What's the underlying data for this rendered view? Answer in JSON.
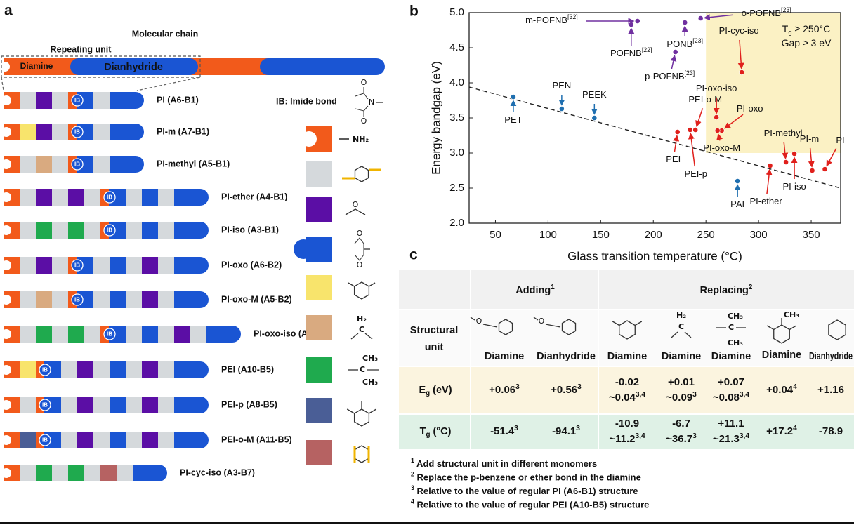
{
  "panel_a": {
    "letter": "a",
    "molecular_chain": "Molecular chain",
    "repeating_unit": "Repeating unit",
    "diamine": "Diamine",
    "dianhydride": "Dianhydride",
    "ib_legend": "IB: Imide bond",
    "ib_mark": "IB",
    "imide_atoms": [
      "O",
      "N",
      "O"
    ],
    "amine": "NH₂",
    "ether": "O",
    "anhydride_atoms": [
      "O",
      "O"
    ],
    "methylene": [
      "H₂",
      "C"
    ],
    "isopropylidene": [
      "CH₃",
      "C",
      "CH₃"
    ],
    "polymers": [
      "PI (A6-B1)",
      "PI-m (A7-B1)",
      "PI-methyl (A5-B1)",
      "PI-ether (A4-B1)",
      "PI-iso (A3-B1)",
      "PI-oxo (A6-B2)",
      "PI-oxo-M (A5-B2)",
      "PI-oxo-iso (A3-B2)",
      "PEI (A10-B5)",
      "PEI-p (A8-B5)",
      "PEI-o-M (A11-B5)",
      "PI-cyc-iso (A3-B7)"
    ]
  },
  "chart_data": {
    "type": "scatter",
    "letter": "b",
    "x_label": "Glass transition temperature (°C)",
    "y_label": "Energy bandgap (eV)",
    "xlim": [
      25,
      378
    ],
    "ylim": [
      2,
      5
    ],
    "xticks": [
      50,
      100,
      150,
      200,
      250,
      300,
      350
    ],
    "yticks": [
      {
        "value": 2,
        "label": "2.0"
      },
      {
        "value": 2.5,
        "label": "2.5"
      },
      {
        "value": 3,
        "label": "3.0"
      },
      {
        "value": 3.5,
        "label": "3.5"
      },
      {
        "value": 4,
        "label": "4.0"
      },
      {
        "value": 4.5,
        "label": "4.5"
      },
      {
        "value": 5,
        "label": "5.0"
      }
    ],
    "highlight": {
      "xlim": [
        250,
        378
      ],
      "ylim": [
        3,
        5
      ],
      "color": "#fbf1c4",
      "label_lines": [
        [
          {
            "t": "T"
          },
          {
            "t": "g",
            "s": "sub"
          },
          {
            "t": " ≥ 250°C"
          }
        ],
        [
          {
            "t": "Gap ≥ 3 eV"
          }
        ]
      ]
    },
    "trend_line": {
      "x": [
        25,
        378
      ],
      "y": [
        3.94,
        2.5
      ]
    },
    "series": [
      {
        "color": "#1f6fb0",
        "x": [
          67,
          113,
          144,
          280
        ],
        "values": [
          3.8,
          3.63,
          3.5,
          2.6
        ],
        "labels": [
          "PET",
          "PEN",
          "PEEK",
          "PAI"
        ]
      },
      {
        "color": "#e0201c",
        "x": [
          223,
          235,
          240,
          260,
          265,
          261,
          284,
          311,
          326,
          334,
          351,
          363
        ],
        "values": [
          3.3,
          3.33,
          3.33,
          3.51,
          3.32,
          3.32,
          4.15,
          2.82,
          2.87,
          2.99,
          2.75,
          2.77
        ],
        "labels": [
          "PEI",
          "PEI-p",
          "PEI-o-M",
          "PI-oxo-iso",
          "PI-oxo",
          "PI-oxo-M",
          "PI-cyc-iso",
          "PI-ether",
          "PI-methyl",
          "PI-iso",
          "PI-m",
          "PI"
        ]
      },
      {
        "color": "#7030a0",
        "x": [
          185,
          179,
          230,
          221,
          245
        ],
        "values": [
          4.88,
          4.83,
          4.86,
          4.44,
          4.92
        ],
        "labels": [
          "m-POFNB",
          "POFNB",
          "PONB",
          "p-POFNB",
          "o-POFNB"
        ],
        "refs": [
          "[32]",
          "[22]",
          "[23]",
          "[23]",
          "[23]"
        ]
      }
    ]
  },
  "table": {
    "letter": "c",
    "groups": [
      [
        {
          "t": "Adding"
        },
        {
          "t": "1",
          "s": "sup"
        }
      ],
      [
        {
          "t": "Replacing"
        },
        {
          "t": "2",
          "s": "sup"
        }
      ]
    ],
    "row_header": [
      "Structural",
      "unit"
    ],
    "columns": [
      "Diamine",
      "Dianhydride",
      "Diamine",
      "Diamine",
      "Diamine",
      "Diamine",
      "Dianhydride"
    ],
    "structure_texts": {
      "ether_diamine": "O",
      "ether_dianhydride": "O",
      "methylene": [
        "H₂",
        "C"
      ],
      "isopropylidene": [
        "CH₃",
        "C",
        "CH₃"
      ],
      "methyl": "CH₃"
    },
    "rows": [
      {
        "label": [
          {
            "t": "E"
          },
          {
            "t": "g",
            "s": "sub"
          },
          {
            "t": " (eV)"
          }
        ],
        "background": "#fbf4df",
        "cells": [
          {
            "color": "#e0201c",
            "lines": [
              [
                {
                  "t": "+0.06"
                },
                {
                  "t": "3",
                  "s": "sup"
                }
              ]
            ]
          },
          {
            "color": "#e0201c",
            "lines": [
              [
                {
                  "t": "+0.56"
                },
                {
                  "t": "3",
                  "s": "sup"
                }
              ]
            ]
          },
          {
            "color": "#1f6fb0",
            "lines": [
              [
                {
                  "t": "-0.02"
                }
              ],
              [
                {
                  "t": "~0.04"
                },
                {
                  "t": "3,4",
                  "s": "sup"
                }
              ]
            ]
          },
          {
            "color": "#e0201c",
            "lines": [
              [
                {
                  "t": "+0.01"
                }
              ],
              [
                {
                  "t": "~0.09"
                },
                {
                  "t": "3",
                  "s": "sup"
                }
              ]
            ]
          },
          {
            "color": "#e0201c",
            "lines": [
              [
                {
                  "t": "+0.07"
                }
              ],
              [
                {
                  "t": "~0.08"
                },
                {
                  "t": "3,4",
                  "s": "sup"
                }
              ]
            ]
          },
          {
            "color": "#e0201c",
            "lines": [
              [
                {
                  "t": "+0.04"
                },
                {
                  "t": "4",
                  "s": "sup"
                }
              ]
            ]
          },
          {
            "color": "#e0201c",
            "lines": [
              [
                {
                  "t": "+1.16"
                }
              ]
            ]
          }
        ]
      },
      {
        "label": [
          {
            "t": "T"
          },
          {
            "t": "g",
            "s": "sub"
          },
          {
            "t": " (°C)"
          }
        ],
        "background": "#dff1e6",
        "cells": [
          {
            "color": "#1f6fb0",
            "lines": [
              [
                {
                  "t": "-51.4"
                },
                {
                  "t": "3",
                  "s": "sup"
                }
              ]
            ]
          },
          {
            "color": "#1f6fb0",
            "lines": [
              [
                {
                  "t": "-94.1"
                },
                {
                  "t": "3",
                  "s": "sup"
                }
              ]
            ]
          },
          {
            "color": "#1f6fb0",
            "lines": [
              [
                {
                  "t": "-10.9"
                }
              ],
              [
                {
                  "t": "~11.2"
                },
                {
                  "t": "3,4",
                  "s": "sup"
                }
              ]
            ]
          },
          {
            "color": "#1f6fb0",
            "lines": [
              [
                {
                  "t": "-6.7"
                }
              ],
              [
                {
                  "t": "~36.7"
                },
                {
                  "t": "3",
                  "s": "sup"
                }
              ]
            ]
          },
          {
            "color": "#e0201c",
            "lines": [
              [
                {
                  "t": "+11.1"
                }
              ],
              [
                {
                  "t": "~21.3"
                },
                {
                  "t": "3,4",
                  "s": "sup"
                }
              ]
            ]
          },
          {
            "color": "#e0201c",
            "lines": [
              [
                {
                  "t": "+17.2"
                },
                {
                  "t": "4",
                  "s": "sup"
                }
              ]
            ]
          },
          {
            "color": "#1f6fb0",
            "lines": [
              [
                {
                  "t": "-78.9"
                }
              ]
            ]
          }
        ]
      }
    ],
    "footnotes": [
      [
        {
          "t": "1",
          "s": "sup"
        },
        {
          "t": " Add structural unit in different monomers"
        }
      ],
      [
        {
          "t": "2",
          "s": "sup"
        },
        {
          "t": " Replace the p-benzene or ether bond in the diamine"
        }
      ],
      [
        {
          "t": "3",
          "s": "sup"
        },
        {
          "t": " Relative to the value of  regular PI (A6-B1) structure"
        }
      ],
      [
        {
          "t": "4",
          "s": "sup"
        },
        {
          "t": " Relative to the value of  regular PEI (A10-B5) structure"
        }
      ]
    ]
  }
}
